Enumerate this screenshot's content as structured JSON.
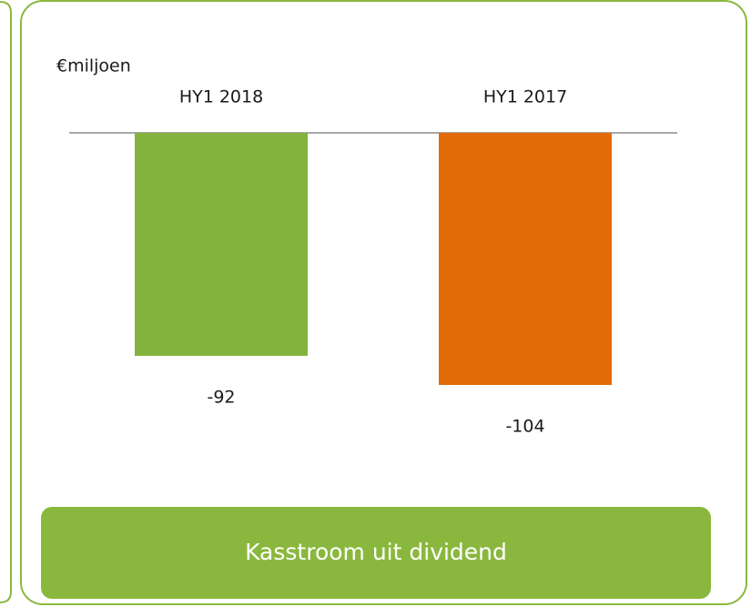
{
  "chart_data": {
    "type": "bar",
    "ylabel": "€miljoen",
    "categories": [
      "HY1 2018",
      "HY1 2017"
    ],
    "values": [
      -92,
      -104
    ],
    "colors": [
      "#84b33d",
      "#e36c09"
    ],
    "footer": "Kasstroom uit dividend"
  }
}
